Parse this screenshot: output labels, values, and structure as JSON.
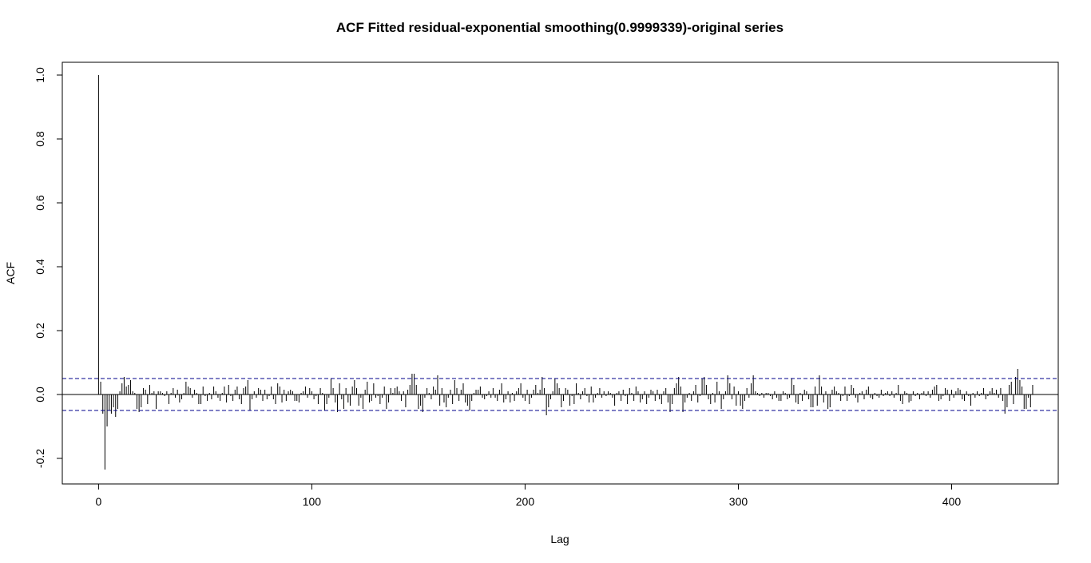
{
  "chart_data": {
    "type": "bar",
    "title": "ACF Fitted residual-exponential smoothing(0.9999339)-original series",
    "xlabel": "Lag",
    "ylabel": "ACF",
    "xlim": [
      -17,
      450
    ],
    "ylim": [
      -0.28,
      1.04
    ],
    "x_ticks": [
      0,
      100,
      200,
      300,
      400
    ],
    "x_tick_labels": [
      "0",
      "100",
      "200",
      "300",
      "400"
    ],
    "y_ticks": [
      -0.2,
      0.0,
      0.2,
      0.4,
      0.6,
      0.8,
      1.0
    ],
    "y_tick_labels": [
      "-0.2",
      "0.0",
      "0.2",
      "0.4",
      "0.6",
      "0.8",
      "1.0"
    ],
    "confidence_bound": 0.05,
    "colors": {
      "bars": "#000000",
      "confidence": "#00008b",
      "zero_line": "#000000"
    },
    "lag_start": 0,
    "acf": [
      1.0,
      0.04,
      -0.06,
      -0.235,
      -0.1,
      -0.05,
      -0.06,
      -0.04,
      -0.07,
      -0.045,
      0.01,
      0.035,
      0.055,
      0.025,
      0.03,
      0.045,
      0.01,
      0.005,
      -0.045,
      -0.055,
      -0.04,
      0.02,
      0.015,
      -0.03,
      0.03,
      0.005,
      0.01,
      -0.045,
      0.01,
      0.01,
      0.005,
      -0.005,
      0.01,
      -0.03,
      0.005,
      0.02,
      -0.01,
      0.015,
      -0.025,
      -0.015,
      0.005,
      0.04,
      0.025,
      0.02,
      -0.01,
      0.015,
      0.005,
      -0.03,
      -0.03,
      0.025,
      -0.005,
      -0.02,
      0.005,
      -0.015,
      0.025,
      0.01,
      -0.01,
      -0.02,
      0.005,
      0.025,
      -0.025,
      0.03,
      -0.005,
      -0.02,
      0.015,
      0.025,
      -0.015,
      -0.03,
      0.02,
      0.025,
      0.045,
      -0.05,
      -0.015,
      0.01,
      -0.01,
      0.02,
      0.015,
      -0.02,
      0.015,
      -0.015,
      -0.005,
      0.025,
      -0.015,
      -0.03,
      0.035,
      0.025,
      -0.025,
      0.015,
      -0.02,
      0.01,
      0.015,
      0.01,
      -0.02,
      -0.02,
      -0.025,
      0.005,
      0.01,
      0.025,
      -0.01,
      0.02,
      0.01,
      -0.015,
      -0.005,
      -0.03,
      0.02,
      0.005,
      -0.05,
      -0.03,
      -0.01,
      0.05,
      0.02,
      -0.025,
      -0.055,
      0.035,
      -0.015,
      -0.045,
      0.02,
      -0.025,
      -0.035,
      0.025,
      0.045,
      0.02,
      -0.035,
      -0.01,
      -0.045,
      0.015,
      0.04,
      -0.025,
      -0.02,
      0.035,
      -0.01,
      -0.005,
      -0.03,
      -0.01,
      0.025,
      -0.045,
      -0.025,
      0.02,
      0.005,
      0.02,
      0.025,
      0.01,
      -0.02,
      0.01,
      -0.04,
      0.015,
      0.03,
      0.065,
      0.065,
      0.03,
      -0.045,
      -0.035,
      -0.055,
      -0.01,
      0.02,
      0.005,
      -0.015,
      0.025,
      0.015,
      0.06,
      -0.035,
      0.02,
      -0.025,
      -0.04,
      -0.01,
      0.015,
      -0.03,
      0.045,
      0.02,
      -0.02,
      0.015,
      0.035,
      -0.025,
      -0.035,
      -0.05,
      -0.02,
      0.005,
      0.015,
      0.015,
      0.025,
      -0.01,
      -0.015,
      -0.005,
      0.01,
      -0.01,
      0.02,
      -0.01,
      -0.02,
      0.015,
      0.035,
      -0.025,
      -0.015,
      0.01,
      -0.025,
      0.005,
      -0.02,
      0.01,
      0.02,
      0.035,
      -0.01,
      -0.02,
      0.015,
      -0.03,
      -0.01,
      0.015,
      0.03,
      0.005,
      0.015,
      0.055,
      0.02,
      -0.065,
      -0.04,
      -0.015,
      0.01,
      0.05,
      0.035,
      0.02,
      -0.04,
      -0.02,
      0.02,
      0.015,
      -0.035,
      -0.005,
      -0.03,
      0.035,
      0.005,
      -0.015,
      0.01,
      0.02,
      -0.005,
      -0.025,
      0.025,
      -0.025,
      -0.01,
      0.005,
      0.02,
      -0.01,
      0.01,
      -0.005,
      0.01,
      0.005,
      -0.01,
      -0.035,
      0.005,
      0.01,
      -0.02,
      0.015,
      -0.005,
      -0.03,
      0.02,
      0.005,
      -0.02,
      0.025,
      0.01,
      -0.025,
      -0.015,
      0.01,
      -0.03,
      -0.01,
      0.015,
      0.01,
      -0.02,
      0.015,
      -0.015,
      -0.03,
      0.01,
      0.02,
      -0.025,
      -0.055,
      -0.03,
      0.02,
      0.035,
      0.055,
      0.025,
      -0.055,
      -0.025,
      -0.01,
      0.005,
      -0.02,
      0.01,
      0.03,
      -0.025,
      -0.005,
      0.05,
      0.055,
      0.03,
      -0.015,
      -0.03,
      0.005,
      -0.025,
      0.04,
      0.01,
      -0.045,
      -0.015,
      0.01,
      0.06,
      0.035,
      -0.015,
      0.025,
      -0.035,
      0.01,
      -0.035,
      -0.045,
      -0.02,
      0.02,
      -0.01,
      0.035,
      0.06,
      0.01,
      0.005,
      -0.005,
      0.005,
      -0.01,
      0.005,
      0.005,
      -0.005,
      -0.015,
      0.01,
      -0.01,
      -0.02,
      -0.02,
      0.01,
      0.005,
      -0.015,
      -0.01,
      0.05,
      0.03,
      -0.025,
      -0.03,
      0.005,
      -0.02,
      0.015,
      0.01,
      -0.015,
      -0.04,
      -0.04,
      0.025,
      -0.035,
      0.06,
      0.025,
      -0.025,
      0.01,
      -0.045,
      -0.04,
      0.015,
      0.025,
      0.01,
      0.005,
      -0.02,
      -0.005,
      0.025,
      -0.02,
      -0.005,
      0.03,
      0.02,
      -0.01,
      -0.025,
      0.005,
      0.01,
      -0.015,
      0.015,
      0.025,
      -0.01,
      -0.015,
      0.005,
      -0.005,
      -0.01,
      0.015,
      -0.005,
      0.005,
      0.01,
      -0.005,
      0.01,
      -0.01,
      0.005,
      0.03,
      -0.02,
      -0.03,
      0.01,
      0.005,
      -0.025,
      -0.02,
      0.01,
      -0.005,
      0.005,
      -0.015,
      0.005,
      0.01,
      -0.005,
      0.01,
      -0.01,
      0.015,
      0.025,
      0.03,
      -0.02,
      -0.015,
      -0.005,
      0.02,
      0.015,
      -0.02,
      0.015,
      -0.01,
      0.01,
      0.02,
      0.015,
      -0.015,
      -0.02,
      0.01,
      -0.005,
      -0.035,
      0.005,
      -0.01,
      0.01,
      -0.005,
      0.005,
      0.02,
      -0.015,
      -0.005,
      0.01,
      0.02,
      0.005,
      0.015,
      -0.01,
      0.02,
      -0.02,
      -0.06,
      -0.04,
      0.03,
      0.04,
      -0.03,
      0.055,
      0.08,
      0.045,
      0.025,
      -0.045,
      -0.045,
      -0.01,
      -0.04,
      0.03
    ]
  }
}
